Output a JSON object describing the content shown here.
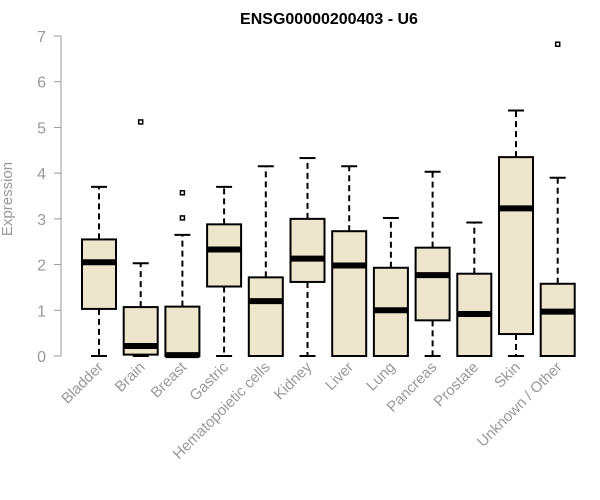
{
  "chart_data": {
    "type": "boxplot",
    "title": "ENSG00000200403 - U6",
    "xlabel": "",
    "ylabel": "Expression",
    "ylim": [
      0,
      7
    ],
    "yticks": [
      0,
      1,
      2,
      3,
      4,
      5,
      6,
      7
    ],
    "grid": false,
    "legend": "none",
    "box_color": "#EDE6CC",
    "categories": [
      "Bladder",
      "Brain",
      "Breast",
      "Gastric",
      "Hematopoietic cells",
      "Kidney",
      "Liver",
      "Lung",
      "Pancreas",
      "Prostate",
      "Skin",
      "Unknown / Other"
    ],
    "boxes": [
      {
        "min": 0,
        "q1": 1.03,
        "median": 2.05,
        "q3": 2.55,
        "max": 3.7,
        "outliers": []
      },
      {
        "min": 0,
        "q1": 0.03,
        "median": 0.22,
        "q3": 1.07,
        "max": 2.03,
        "outliers": [
          5.12
        ]
      },
      {
        "min": 0,
        "q1": 0.0,
        "median": 0.02,
        "q3": 1.08,
        "max": 2.65,
        "outliers": [
          3.02,
          3.57
        ]
      },
      {
        "min": 0,
        "q1": 1.52,
        "median": 2.33,
        "q3": 2.88,
        "max": 3.7,
        "outliers": []
      },
      {
        "min": 0,
        "q1": 0.0,
        "median": 1.2,
        "q3": 1.72,
        "max": 4.15,
        "outliers": []
      },
      {
        "min": 0,
        "q1": 1.62,
        "median": 2.13,
        "q3": 3.0,
        "max": 4.33,
        "outliers": []
      },
      {
        "min": 0,
        "q1": 0.0,
        "median": 1.98,
        "q3": 2.73,
        "max": 4.15,
        "outliers": []
      },
      {
        "min": 0,
        "q1": 0.0,
        "median": 1.0,
        "q3": 1.93,
        "max": 3.02,
        "outliers": []
      },
      {
        "min": 0,
        "q1": 0.78,
        "median": 1.77,
        "q3": 2.37,
        "max": 4.03,
        "outliers": []
      },
      {
        "min": 0,
        "q1": 0.0,
        "median": 0.92,
        "q3": 1.8,
        "max": 2.92,
        "outliers": []
      },
      {
        "min": 0,
        "q1": 0.48,
        "median": 3.23,
        "q3": 4.35,
        "max": 5.37,
        "outliers": []
      },
      {
        "min": 0,
        "q1": 0.0,
        "median": 0.97,
        "q3": 1.58,
        "max": 3.9,
        "outliers": [
          6.82
        ]
      }
    ]
  }
}
